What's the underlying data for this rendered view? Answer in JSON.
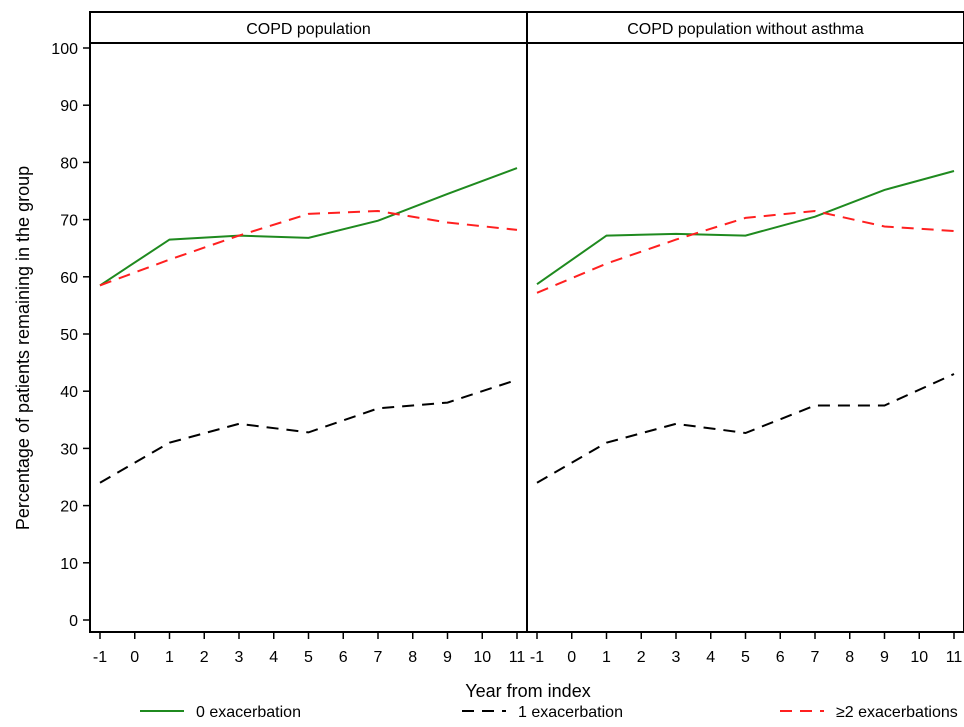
{
  "chart_data": {
    "type": "line",
    "xlabel": "Year from index",
    "ylabel": "Percentage of patients remaining in the group",
    "ylim": [
      0,
      100
    ],
    "y_ticks": [
      0,
      10,
      20,
      30,
      40,
      50,
      60,
      70,
      80,
      90,
      100
    ],
    "x_ticks": [
      -1,
      0,
      1,
      2,
      3,
      4,
      5,
      6,
      7,
      8,
      9,
      10,
      11
    ],
    "grid": false,
    "legend_position": "bottom",
    "series_styles": [
      {
        "name": "0 exacerbation",
        "color": "#1f8a1f",
        "dash": "solid"
      },
      {
        "name": "1 exacerbation",
        "color": "#000000",
        "dash": "dashed"
      },
      {
        "name": "≥2 exacerbations",
        "color": "#ff2020",
        "dash": "dashed"
      }
    ],
    "panels": [
      {
        "title": "COPD population",
        "series": [
          {
            "name": "0 exacerbation",
            "x": [
              -1,
              1,
              3,
              5,
              7,
              9,
              11
            ],
            "values": [
              58.5,
              66.5,
              67.2,
              66.8,
              69.8,
              74.5,
              79
            ]
          },
          {
            "name": "1 exacerbation",
            "x": [
              -1,
              1,
              3,
              5,
              7,
              9,
              11
            ],
            "values": [
              24,
              31,
              34.3,
              32.8,
              37,
              38,
              42
            ]
          },
          {
            "name": "≥2 exacerbations",
            "x": [
              -1,
              1,
              3,
              5,
              7,
              9,
              11
            ],
            "values": [
              58.5,
              63,
              67.2,
              71,
              71.5,
              69.5,
              68.2
            ]
          }
        ]
      },
      {
        "title": "COPD population without asthma",
        "series": [
          {
            "name": "0 exacerbation",
            "x": [
              -1,
              1,
              3,
              5,
              7,
              9,
              11
            ],
            "values": [
              58.7,
              67.2,
              67.5,
              67.2,
              70.5,
              75.2,
              78.5
            ]
          },
          {
            "name": "1 exacerbation",
            "x": [
              -1,
              1,
              3,
              5,
              7,
              9,
              11
            ],
            "values": [
              24,
              31,
              34.3,
              32.7,
              37.5,
              37.5,
              43
            ]
          },
          {
            "name": "≥2 exacerbations",
            "x": [
              -1,
              1,
              3,
              5,
              7,
              9,
              11
            ],
            "values": [
              57.2,
              62.3,
              66.5,
              70.3,
              71.5,
              68.8,
              68
            ]
          }
        ]
      }
    ]
  }
}
